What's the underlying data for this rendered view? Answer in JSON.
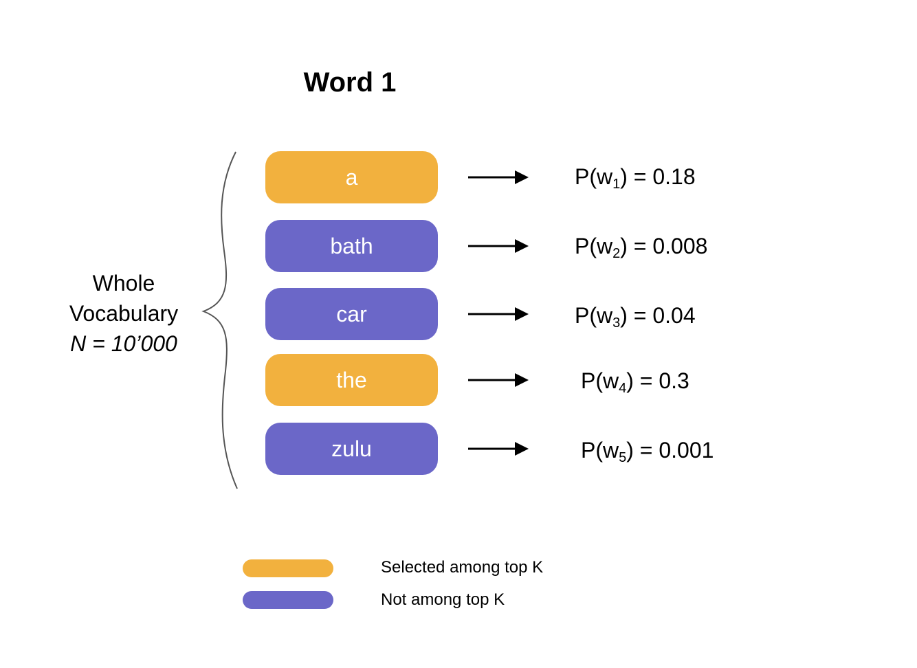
{
  "title": "Word 1",
  "vocabulary": {
    "line1": "Whole",
    "line2": "Vocabulary",
    "line3": "N = 10’000"
  },
  "colors": {
    "selected": "#F2B13E",
    "not_selected": "#6B67C8"
  },
  "words": [
    {
      "label": "a",
      "prob_prefix": "P(w",
      "index": "1",
      "prob_suffix": ") = 0.18",
      "selected": true
    },
    {
      "label": "bath",
      "prob_prefix": "P(w",
      "index": "2",
      "prob_suffix": ") = 0.008",
      "selected": false
    },
    {
      "label": "car",
      "prob_prefix": "P(w",
      "index": "3",
      "prob_suffix": ") = 0.04",
      "selected": false
    },
    {
      "label": "the",
      "prob_prefix": "P(w",
      "index": "4",
      "prob_suffix": ") = 0.3",
      "selected": true
    },
    {
      "label": "zulu",
      "prob_prefix": "P(w",
      "index": "5",
      "prob_suffix": ") = 0.001",
      "selected": false
    }
  ],
  "legend": {
    "selected_label": "Selected among top K",
    "not_selected_label": "Not among top K"
  }
}
